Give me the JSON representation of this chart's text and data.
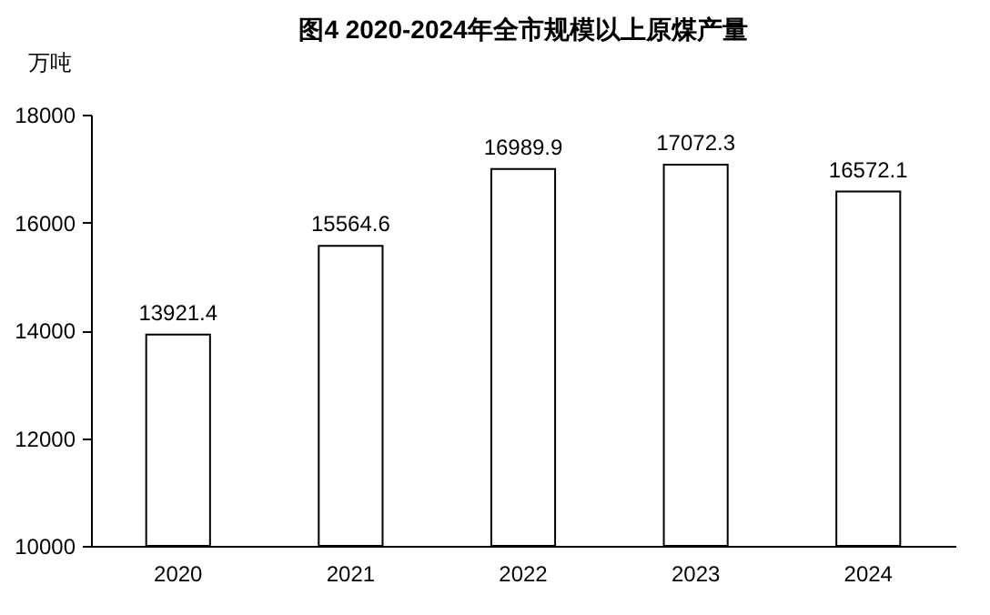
{
  "chart_data": {
    "type": "bar",
    "title": "图4  2020-2024年全市规模以上原煤产量",
    "ylabel": "万吨",
    "categories": [
      "2020",
      "2021",
      "2022",
      "2023",
      "2024"
    ],
    "values": [
      13921.4,
      15564.6,
      16989.9,
      17072.3,
      16572.1
    ],
    "color": "#ffffff",
    "ylim": [
      10000,
      18000
    ],
    "yticks": [
      10000,
      12000,
      14000,
      16000,
      18000
    ],
    "data_labels": true,
    "grid": false
  }
}
